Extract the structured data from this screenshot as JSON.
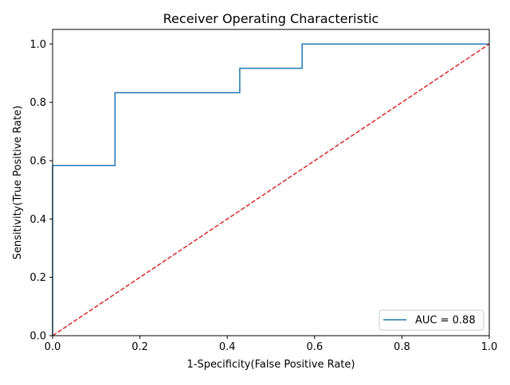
{
  "chart_data": {
    "type": "line",
    "title": "Receiver Operating Characteristic",
    "xlabel": "1-Specificity(False Positive Rate)",
    "ylabel": "Sensitivity(True Positive Rate)",
    "xlim": [
      0,
      1
    ],
    "ylim": [
      0,
      1.05
    ],
    "x_ticks": [
      0.0,
      0.2,
      0.4,
      0.6,
      0.8,
      1.0
    ],
    "x_tick_labels": [
      "0.0",
      "0.2",
      "0.4",
      "0.6",
      "0.8",
      "1.0"
    ],
    "y_ticks": [
      0.0,
      0.2,
      0.4,
      0.6,
      0.8,
      1.0
    ],
    "y_tick_labels": [
      "0.0",
      "0.2",
      "0.4",
      "0.6",
      "0.8",
      "1.0"
    ],
    "grid": false,
    "legend_position": "lower-right",
    "series": [
      {
        "name": "AUC = 0.88",
        "color": "#1f77b4",
        "style": "solid",
        "x": [
          0.0,
          0.0,
          0.1429,
          0.1429,
          0.4286,
          0.4286,
          0.5714,
          0.5714,
          1.0
        ],
        "y": [
          0.0,
          0.5833,
          0.5833,
          0.8333,
          0.8333,
          0.9167,
          0.9167,
          1.0,
          1.0
        ]
      },
      {
        "color": "#d62728",
        "style": "dashed",
        "x": [
          0.0,
          1.0
        ],
        "y": [
          0.0,
          1.0
        ]
      }
    ]
  }
}
